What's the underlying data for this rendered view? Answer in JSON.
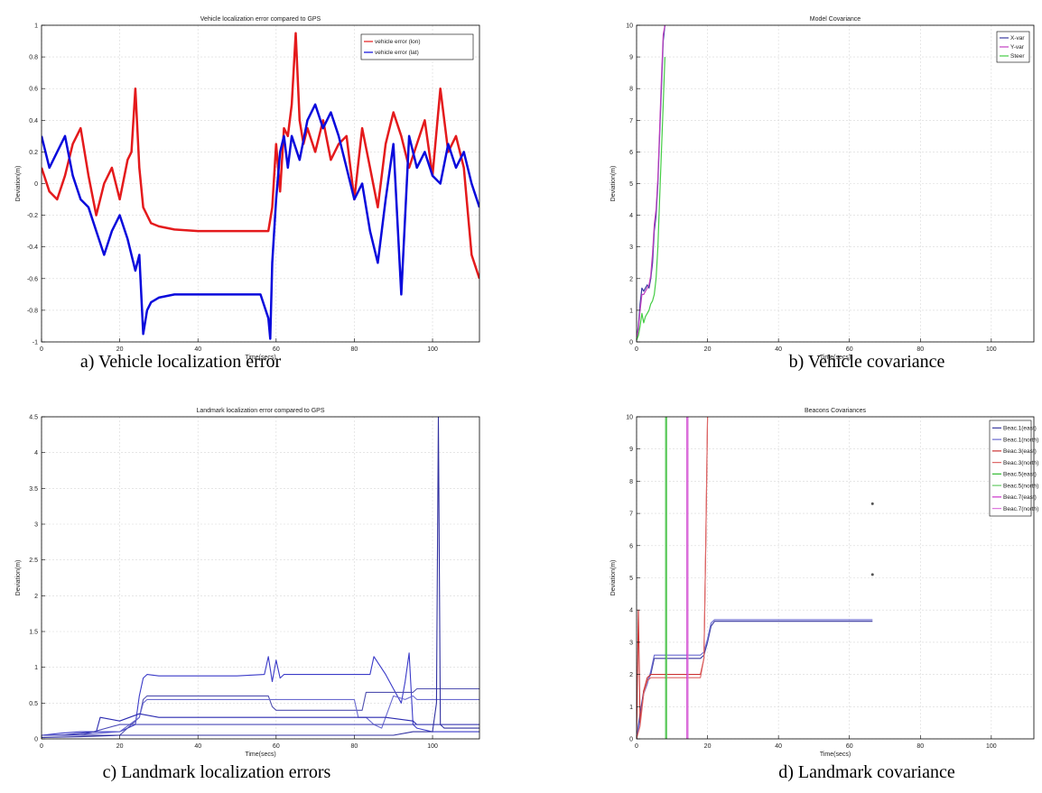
{
  "chart_data": [
    {
      "type": "line",
      "title": "Vehicle localization error compared to GPS",
      "xlabel": "Time(secs)",
      "ylabel": "Deviation(m)",
      "xlim": [
        0,
        112
      ],
      "ylim": [
        -1,
        1
      ],
      "xticks": [
        0,
        20,
        40,
        60,
        80,
        100
      ],
      "yticks": [
        -1,
        -0.8,
        -0.6,
        -0.4,
        -0.2,
        0,
        0.2,
        0.4,
        0.6,
        0.8,
        1
      ],
      "grid": true,
      "legend_position": "top-right",
      "caption": "a) Vehicle localization error",
      "series": [
        {
          "name": "vehicle error (lon)",
          "color": "#e41a1c",
          "width": 2.5,
          "x": [
            0,
            2,
            4,
            6,
            8,
            10,
            12,
            14,
            16,
            18,
            20,
            22,
            23,
            24,
            25,
            26,
            27,
            28,
            30,
            34,
            40,
            46,
            52,
            56,
            58,
            59,
            60,
            61,
            62,
            63,
            64,
            65,
            66,
            67,
            68,
            70,
            72,
            74,
            76,
            78,
            80,
            82,
            84,
            86,
            88,
            90,
            92,
            94,
            96,
            98,
            100,
            102,
            104,
            106,
            108,
            110,
            112
          ],
          "y": [
            0.1,
            -0.05,
            -0.1,
            0.05,
            0.25,
            0.35,
            0.05,
            -0.2,
            0.0,
            0.1,
            -0.1,
            0.15,
            0.2,
            0.6,
            0.1,
            -0.15,
            -0.2,
            -0.25,
            -0.27,
            -0.29,
            -0.3,
            -0.3,
            -0.3,
            -0.3,
            -0.3,
            -0.15,
            0.25,
            -0.05,
            0.35,
            0.3,
            0.5,
            0.95,
            0.4,
            0.25,
            0.35,
            0.2,
            0.4,
            0.15,
            0.25,
            0.3,
            -0.1,
            0.35,
            0.1,
            -0.15,
            0.25,
            0.45,
            0.3,
            0.1,
            0.25,
            0.4,
            0.05,
            0.6,
            0.2,
            0.3,
            0.1,
            -0.45,
            -0.6
          ]
        },
        {
          "name": "vehicle error (lat)",
          "color": "#0a0adc",
          "width": 2.5,
          "x": [
            0,
            2,
            4,
            6,
            8,
            10,
            12,
            14,
            16,
            18,
            20,
            22,
            24,
            25,
            26,
            27,
            28,
            30,
            34,
            40,
            46,
            52,
            56,
            58,
            58.5,
            59,
            60,
            61,
            62,
            63,
            64,
            66,
            68,
            70,
            72,
            74,
            76,
            78,
            80,
            82,
            84,
            86,
            88,
            90,
            92,
            94,
            96,
            98,
            100,
            102,
            104,
            106,
            108,
            110,
            112
          ],
          "y": [
            0.3,
            0.1,
            0.2,
            0.3,
            0.05,
            -0.1,
            -0.15,
            -0.3,
            -0.45,
            -0.3,
            -0.2,
            -0.35,
            -0.55,
            -0.45,
            -0.95,
            -0.8,
            -0.75,
            -0.72,
            -0.7,
            -0.7,
            -0.7,
            -0.7,
            -0.7,
            -0.85,
            -0.98,
            -0.5,
            -0.1,
            0.2,
            0.3,
            0.1,
            0.3,
            0.15,
            0.4,
            0.5,
            0.35,
            0.45,
            0.3,
            0.1,
            -0.1,
            0.0,
            -0.3,
            -0.5,
            -0.1,
            0.25,
            -0.7,
            0.3,
            0.1,
            0.2,
            0.05,
            0.0,
            0.25,
            0.1,
            0.2,
            0.0,
            -0.15
          ]
        }
      ]
    },
    {
      "type": "line",
      "title": "Model Covariance",
      "xlabel": "Time(secs)",
      "ylabel": "Deviation(m)",
      "xlim": [
        0,
        112
      ],
      "ylim": [
        0,
        10
      ],
      "xticks": [
        0,
        20,
        40,
        60,
        80,
        100
      ],
      "yticks": [
        0,
        1,
        2,
        3,
        4,
        5,
        6,
        7,
        8,
        9,
        10
      ],
      "grid": true,
      "legend_position": "top-right",
      "caption": "b) Vehicle covariance",
      "series": [
        {
          "name": "X-var",
          "color": "#3a3aa0",
          "width": 1.2,
          "x": [
            0,
            0.5,
            1,
            1.5,
            2,
            2.5,
            3,
            3.5,
            4,
            4.5,
            5,
            5.5,
            6,
            6.5,
            7,
            7.5,
            8
          ],
          "y": [
            0.1,
            0.5,
            1.2,
            1.7,
            1.6,
            1.7,
            1.8,
            1.7,
            2.0,
            2.5,
            3.5,
            4.0,
            5.0,
            6.5,
            8.0,
            9.5,
            10
          ]
        },
        {
          "name": "Y-var",
          "color": "#c040c0",
          "width": 1.2,
          "x": [
            0,
            0.5,
            1,
            1.5,
            2,
            2.5,
            3,
            3.5,
            4,
            4.5,
            5,
            5.5,
            6,
            6.5,
            7,
            7.5,
            8
          ],
          "y": [
            0.1,
            0.4,
            1.0,
            1.5,
            1.5,
            1.6,
            1.7,
            1.8,
            2.1,
            2.8,
            3.7,
            4.2,
            5.2,
            6.7,
            8.3,
            9.7,
            10
          ]
        },
        {
          "name": "Steer",
          "color": "#44cc44",
          "width": 1.2,
          "x": [
            0,
            0.5,
            1,
            1.5,
            2,
            2.5,
            3,
            3.5,
            4,
            4.5,
            5,
            5.5,
            6,
            6.5,
            7,
            7.5,
            8
          ],
          "y": [
            0.05,
            0.2,
            0.5,
            0.9,
            0.6,
            0.8,
            0.9,
            1.0,
            1.2,
            1.3,
            1.5,
            2.0,
            3.0,
            4.5,
            6.0,
            7.5,
            9.0
          ]
        }
      ]
    },
    {
      "type": "line",
      "title": "Landmark localization error compared to GPS",
      "xlabel": "Time(secs)",
      "ylabel": "Deviation(m)",
      "xlim": [
        0,
        112
      ],
      "ylim": [
        0,
        4.5
      ],
      "xticks": [
        0,
        20,
        40,
        60,
        80,
        100
      ],
      "yticks": [
        0,
        0.5,
        1,
        1.5,
        2,
        2.5,
        3,
        3.5,
        4,
        4.5
      ],
      "grid": true,
      "caption": "c) Landmark localization errors",
      "series": [
        {
          "color": "#3a3ac8",
          "width": 1.1,
          "x": [
            0,
            5,
            10,
            15,
            20,
            24,
            25,
            26,
            27,
            30,
            40,
            50,
            57,
            58,
            59,
            60,
            61,
            62,
            70,
            80,
            84,
            85,
            88,
            90,
            92,
            93,
            94,
            95,
            96,
            100,
            112
          ],
          "y": [
            0.05,
            0.08,
            0.1,
            0.1,
            0.1,
            0.2,
            0.6,
            0.85,
            0.9,
            0.88,
            0.88,
            0.88,
            0.9,
            1.15,
            0.8,
            1.1,
            0.85,
            0.9,
            0.9,
            0.9,
            0.9,
            1.15,
            0.9,
            0.7,
            0.5,
            0.8,
            1.2,
            0.2,
            0.15,
            0.1,
            0.1
          ]
        },
        {
          "color": "#5050b0",
          "width": 1.1,
          "x": [
            0,
            10,
            20,
            25,
            26,
            27,
            30,
            40,
            50,
            58,
            59,
            60,
            62,
            70,
            82,
            83,
            90,
            95,
            96,
            112
          ],
          "y": [
            0.05,
            0.05,
            0.05,
            0.3,
            0.55,
            0.6,
            0.6,
            0.6,
            0.6,
            0.6,
            0.45,
            0.4,
            0.4,
            0.4,
            0.4,
            0.65,
            0.65,
            0.65,
            0.7,
            0.7
          ]
        },
        {
          "color": "#6a6ad0",
          "width": 1.1,
          "x": [
            0,
            10,
            20,
            25,
            26,
            27,
            30,
            40,
            50,
            60,
            70,
            80,
            81,
            82,
            83,
            85,
            87,
            90,
            93,
            95,
            96,
            112
          ],
          "y": [
            0.05,
            0.06,
            0.1,
            0.3,
            0.5,
            0.55,
            0.55,
            0.55,
            0.55,
            0.55,
            0.55,
            0.55,
            0.3,
            0.3,
            0.3,
            0.2,
            0.15,
            0.6,
            0.55,
            0.6,
            0.55,
            0.55
          ]
        },
        {
          "color": "#2a2ab0",
          "width": 1.1,
          "x": [
            0,
            5,
            10,
            14,
            15,
            20,
            25,
            30,
            40,
            50,
            60,
            70,
            80,
            88,
            95,
            96,
            100,
            112
          ],
          "y": [
            0.05,
            0.05,
            0.08,
            0.1,
            0.3,
            0.25,
            0.35,
            0.3,
            0.3,
            0.3,
            0.3,
            0.3,
            0.3,
            0.3,
            0.25,
            0.2,
            0.2,
            0.2
          ]
        },
        {
          "color": "#4a4ab8",
          "width": 1.1,
          "x": [
            0,
            10,
            20,
            30,
            40,
            50,
            60,
            70,
            80,
            90,
            100,
            112
          ],
          "y": [
            0.05,
            0.05,
            0.2,
            0.2,
            0.2,
            0.2,
            0.2,
            0.2,
            0.2,
            0.2,
            0.2,
            0.2
          ]
        },
        {
          "color": "#3030a0",
          "width": 1.1,
          "x": [
            0,
            10,
            20,
            30,
            40,
            50,
            60,
            70,
            80,
            85,
            90,
            95,
            100,
            101,
            101.5,
            102,
            103,
            112
          ],
          "y": [
            0.02,
            0.03,
            0.05,
            0.05,
            0.05,
            0.05,
            0.05,
            0.05,
            0.05,
            0.05,
            0.05,
            0.1,
            0.1,
            0.5,
            4.5,
            0.2,
            0.15,
            0.15
          ]
        }
      ]
    },
    {
      "type": "line",
      "title": "Beacons Covariances",
      "xlabel": "Time(secs)",
      "ylabel": "Deviation(m)",
      "xlim": [
        0,
        112
      ],
      "ylim": [
        0,
        10
      ],
      "xticks": [
        0,
        20,
        40,
        60,
        80,
        100
      ],
      "yticks": [
        0,
        1,
        2,
        3,
        4,
        5,
        6,
        7,
        8,
        9,
        10
      ],
      "grid": true,
      "legend_position": "top-right",
      "caption": "d) Landmark covariance",
      "series": [
        {
          "name": "Beac.1(east)",
          "color": "#3a3aa0",
          "width": 1.1,
          "x": [
            0,
            1,
            2,
            3,
            4,
            5,
            10,
            15,
            18,
            19,
            20,
            21,
            22,
            30,
            40,
            50,
            60,
            66.5
          ],
          "y": [
            0,
            0.8,
            1.5,
            1.8,
            2.0,
            2.5,
            2.5,
            2.5,
            2.5,
            2.6,
            3.0,
            3.5,
            3.65,
            3.65,
            3.65,
            3.65,
            3.65,
            3.65
          ]
        },
        {
          "name": "Beac.1(north)",
          "color": "#6a6ad0",
          "width": 1.1,
          "x": [
            0,
            1,
            2,
            3,
            4,
            5,
            10,
            15,
            18,
            19,
            20,
            21,
            22,
            30,
            40,
            50,
            60,
            66.5
          ],
          "y": [
            0,
            0.6,
            1.4,
            1.7,
            2.1,
            2.6,
            2.6,
            2.6,
            2.6,
            2.7,
            3.1,
            3.6,
            3.7,
            3.7,
            3.7,
            3.7,
            3.7,
            3.7
          ]
        },
        {
          "name": "Beac.3(east)",
          "color": "#cc3333",
          "width": 1.1,
          "x": [
            0,
            0.5,
            1,
            2,
            3,
            4,
            6,
            10,
            15,
            18,
            19,
            19.5,
            20
          ],
          "y": [
            0,
            4.0,
            0.5,
            1.5,
            1.9,
            2.0,
            2.0,
            2.0,
            2.0,
            2.0,
            2.5,
            6.0,
            10
          ]
        },
        {
          "name": "Beac.3(north)",
          "color": "#dd6666",
          "width": 1.1,
          "x": [
            0,
            1,
            2,
            3,
            4,
            6,
            10,
            15,
            18,
            19,
            19.5,
            20
          ],
          "y": [
            0,
            0.4,
            1.4,
            1.8,
            1.9,
            1.9,
            1.9,
            1.9,
            1.9,
            2.5,
            6.0,
            10
          ]
        },
        {
          "name": "Beac.5(east)",
          "color": "#33bb33",
          "width": 1.1,
          "x": [
            8.2,
            8.2
          ],
          "y": [
            0,
            10
          ]
        },
        {
          "name": "Beac.5(north)",
          "color": "#66cc66",
          "width": 1.1,
          "x": [
            8.5,
            8.5
          ],
          "y": [
            0,
            10
          ]
        },
        {
          "name": "Beac.7(east)",
          "color": "#cc33cc",
          "width": 1.1,
          "x": [
            14.2,
            14.2
          ],
          "y": [
            0,
            10
          ]
        },
        {
          "name": "Beac.7(north)",
          "color": "#dd77dd",
          "width": 1.1,
          "x": [
            14.5,
            14.5
          ],
          "y": [
            0,
            10
          ]
        }
      ],
      "points": [
        {
          "x": 66.5,
          "y": 7.3,
          "color": "#555555"
        },
        {
          "x": 66.5,
          "y": 5.1,
          "color": "#555555"
        }
      ]
    }
  ]
}
